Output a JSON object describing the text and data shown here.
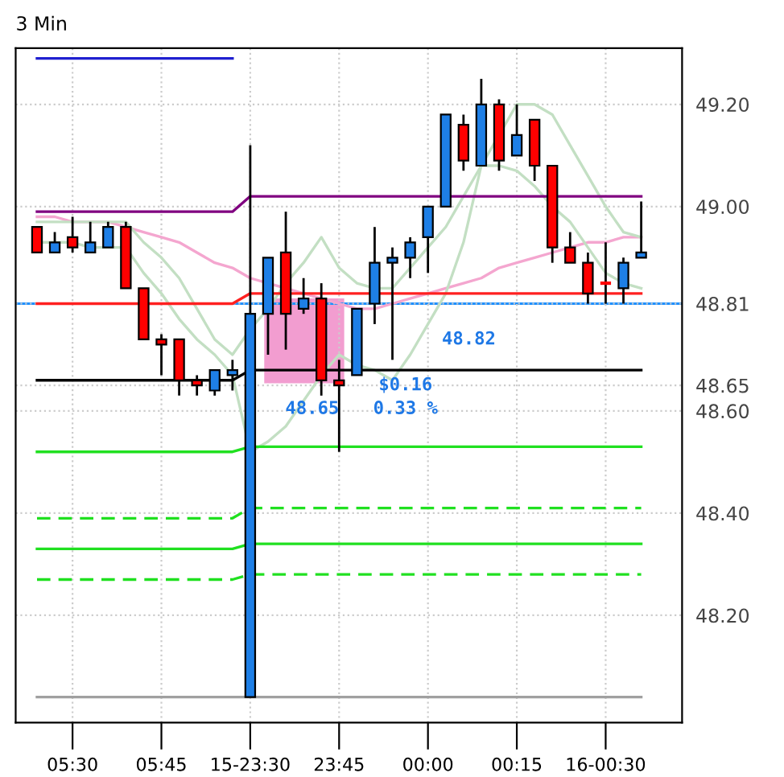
{
  "chart_data": {
    "type": "candlestick",
    "title": "3 Min",
    "categories": [
      null,
      null,
      "05:30",
      null,
      null,
      null,
      null,
      "05:45",
      null,
      null,
      null,
      null,
      "15-23:30",
      null,
      null,
      null,
      null,
      "23:45",
      null,
      null,
      null,
      null,
      "00:00",
      null,
      null,
      null,
      null,
      "00:15",
      null,
      null,
      null,
      null,
      "16-00:30",
      null,
      null
    ],
    "ohlc": [
      [
        48.96,
        48.96,
        48.91,
        48.91
      ],
      [
        48.91,
        48.95,
        48.91,
        48.93
      ],
      [
        48.94,
        48.98,
        48.91,
        48.92
      ],
      [
        48.91,
        48.97,
        48.91,
        48.93
      ],
      [
        48.92,
        48.97,
        48.92,
        48.96
      ],
      [
        48.96,
        48.97,
        48.84,
        48.84
      ],
      [
        48.84,
        48.84,
        48.74,
        48.74
      ],
      [
        48.74,
        48.75,
        48.67,
        48.73
      ],
      [
        48.74,
        48.74,
        48.63,
        48.66
      ],
      [
        48.66,
        48.67,
        48.63,
        48.65
      ],
      [
        48.64,
        48.68,
        48.63,
        48.68
      ],
      [
        48.67,
        48.7,
        48.64,
        48.68
      ],
      [
        48.04,
        49.12,
        48.04,
        48.79
      ],
      [
        48.79,
        48.9,
        48.71,
        48.9
      ],
      [
        48.91,
        48.99,
        48.72,
        48.79
      ],
      [
        48.8,
        48.86,
        48.79,
        48.82
      ],
      [
        48.82,
        48.85,
        48.63,
        48.66
      ],
      [
        48.66,
        48.7,
        48.52,
        48.65
      ],
      [
        48.67,
        48.8,
        48.67,
        48.8
      ],
      [
        48.81,
        48.96,
        48.77,
        48.89
      ],
      [
        48.89,
        48.92,
        48.7,
        48.9
      ],
      [
        48.9,
        48.94,
        48.86,
        48.93
      ],
      [
        48.94,
        49.0,
        48.87,
        49.0
      ],
      [
        49.0,
        49.18,
        49.0,
        49.18
      ],
      [
        49.16,
        49.18,
        49.07,
        49.09
      ],
      [
        49.08,
        49.25,
        49.08,
        49.2
      ],
      [
        49.2,
        49.21,
        49.07,
        49.09
      ],
      [
        49.1,
        49.2,
        49.1,
        49.14
      ],
      [
        49.17,
        49.17,
        49.05,
        49.08
      ],
      [
        49.08,
        49.08,
        48.89,
        48.92
      ],
      [
        48.92,
        48.95,
        48.89,
        48.89
      ],
      [
        48.89,
        48.91,
        48.81,
        48.83
      ],
      [
        48.85,
        48.93,
        48.81,
        48.85
      ],
      [
        48.84,
        48.9,
        48.81,
        48.89
      ],
      [
        48.9,
        49.01,
        48.9,
        48.91
      ]
    ],
    "colors": [
      "#ff0000",
      "#1e7fe6",
      "#ff0000",
      "#1e7fe6",
      "#1e7fe6",
      "#ff0000",
      "#ff0000",
      "#ff0000",
      "#ff0000",
      "#ff0000",
      "#1e7fe6",
      "#1e7fe6",
      "#1e7fe6",
      "#1e7fe6",
      "#ff0000",
      "#1e7fe6",
      "#ff0000",
      "#ff0000",
      "#1e7fe6",
      "#1e7fe6",
      "#1e7fe6",
      "#1e7fe6",
      "#1e7fe6",
      "#1e7fe6",
      "#ff0000",
      "#1e7fe6",
      "#ff0000",
      "#1e7fe6",
      "#ff0000",
      "#ff0000",
      "#ff0000",
      "#ff0000",
      "#ff0000",
      "#1e7fe6",
      "#1e7fe6"
    ],
    "series": [
      {
        "type": "line",
        "color": "#f4a6cf",
        "values": [
          48.98,
          48.98,
          48.97,
          48.97,
          48.97,
          48.96,
          48.95,
          48.94,
          48.93,
          48.91,
          48.89,
          48.88,
          48.86,
          48.85,
          48.84,
          48.83,
          48.82,
          48.81,
          48.8,
          48.8,
          48.81,
          48.82,
          48.83,
          48.84,
          48.85,
          48.86,
          48.88,
          48.89,
          48.9,
          48.91,
          48.92,
          48.93,
          48.93,
          48.94,
          48.94
        ]
      },
      {
        "type": "line",
        "color": "#c3dfc3",
        "values": [
          48.97,
          48.97,
          48.97,
          48.97,
          48.97,
          48.97,
          48.93,
          48.9,
          48.86,
          48.8,
          48.74,
          48.71,
          48.76,
          48.8,
          48.85,
          48.89,
          48.94,
          48.88,
          48.85,
          48.84,
          48.84,
          48.88,
          48.92,
          48.96,
          49.02,
          49.08,
          49.14,
          49.2,
          49.2,
          49.18,
          49.12,
          49.06,
          49.0,
          48.95,
          48.94
        ]
      },
      {
        "type": "line",
        "color": "#c3dfc3",
        "values": [
          48.93,
          48.93,
          48.93,
          48.92,
          48.92,
          48.92,
          48.87,
          48.83,
          48.78,
          48.74,
          48.71,
          48.67,
          48.52,
          48.54,
          48.57,
          48.62,
          48.67,
          48.71,
          48.69,
          48.68,
          48.66,
          48.71,
          48.77,
          48.83,
          48.93,
          49.08,
          49.08,
          49.07,
          49.04,
          49.0,
          48.97,
          48.92,
          48.87,
          48.85,
          48.84
        ]
      },
      {
        "type": "line",
        "color": "#2020d0",
        "values": [
          49.29,
          49.29,
          49.29,
          49.29,
          49.29,
          49.29,
          49.29,
          49.29,
          49.29,
          49.29,
          49.29,
          49.29,
          null,
          null,
          null,
          null,
          null,
          null,
          null,
          null,
          null,
          null,
          null,
          null,
          null,
          null,
          null,
          null,
          null,
          null,
          null,
          null,
          null,
          null,
          null
        ]
      },
      {
        "type": "line",
        "color": "#800080",
        "values": [
          48.99,
          48.99,
          48.99,
          48.99,
          48.99,
          48.99,
          48.99,
          48.99,
          48.99,
          48.99,
          48.99,
          48.99,
          49.02,
          49.02,
          49.02,
          49.02,
          49.02,
          49.02,
          49.02,
          49.02,
          49.02,
          49.02,
          49.02,
          49.02,
          49.02,
          49.02,
          49.02,
          49.02,
          49.02,
          49.02,
          49.02,
          49.02,
          49.02,
          49.02,
          49.02
        ]
      },
      {
        "type": "line",
        "color": "#ff2020",
        "values": [
          48.81,
          48.81,
          48.81,
          48.81,
          48.81,
          48.81,
          48.81,
          48.81,
          48.81,
          48.81,
          48.81,
          48.81,
          48.83,
          48.83,
          48.83,
          48.83,
          48.83,
          48.83,
          48.83,
          48.83,
          48.83,
          48.83,
          48.83,
          48.83,
          48.83,
          48.83,
          48.83,
          48.83,
          48.83,
          48.83,
          48.83,
          48.83,
          48.83,
          48.83,
          48.83
        ]
      },
      {
        "type": "line",
        "color": "#000000",
        "values": [
          48.66,
          48.66,
          48.66,
          48.66,
          48.66,
          48.66,
          48.66,
          48.66,
          48.66,
          48.66,
          48.66,
          48.66,
          48.68,
          48.68,
          48.68,
          48.68,
          48.68,
          48.68,
          48.68,
          48.68,
          48.68,
          48.68,
          48.68,
          48.68,
          48.68,
          48.68,
          48.68,
          48.68,
          48.68,
          48.68,
          48.68,
          48.68,
          48.68,
          48.68,
          48.68
        ]
      },
      {
        "type": "line",
        "color": "#20e020",
        "values": [
          48.52,
          48.52,
          48.52,
          48.52,
          48.52,
          48.52,
          48.52,
          48.52,
          48.52,
          48.52,
          48.52,
          48.52,
          48.53,
          48.53,
          48.53,
          48.53,
          48.53,
          48.53,
          48.53,
          48.53,
          48.53,
          48.53,
          48.53,
          48.53,
          48.53,
          48.53,
          48.53,
          48.53,
          48.53,
          48.53,
          48.53,
          48.53,
          48.53,
          48.53,
          48.53
        ]
      },
      {
        "type": "line",
        "color": "#20e020",
        "values": [
          48.33,
          48.33,
          48.33,
          48.33,
          48.33,
          48.33,
          48.33,
          48.33,
          48.33,
          48.33,
          48.33,
          48.33,
          48.34,
          48.34,
          48.34,
          48.34,
          48.34,
          48.34,
          48.34,
          48.34,
          48.34,
          48.34,
          48.34,
          48.34,
          48.34,
          48.34,
          48.34,
          48.34,
          48.34,
          48.34,
          48.34,
          48.34,
          48.34,
          48.34,
          48.34
        ]
      },
      {
        "type": "line",
        "color": "#20e020",
        "line_style": "dashed",
        "values": [
          48.39,
          48.39,
          48.39,
          48.39,
          48.39,
          48.39,
          48.39,
          48.39,
          48.39,
          48.39,
          48.39,
          48.39,
          48.41,
          48.41,
          48.41,
          48.41,
          48.41,
          48.41,
          48.41,
          48.41,
          48.41,
          48.41,
          48.41,
          48.41,
          48.41,
          48.41,
          48.41,
          48.41,
          48.41,
          48.41,
          48.41,
          48.41,
          48.41,
          48.41,
          48.41
        ]
      },
      {
        "type": "line",
        "color": "#20e020",
        "line_style": "dashed",
        "values": [
          48.27,
          48.27,
          48.27,
          48.27,
          48.27,
          48.27,
          48.27,
          48.27,
          48.27,
          48.27,
          48.27,
          48.27,
          48.28,
          48.28,
          48.28,
          48.28,
          48.28,
          48.28,
          48.28,
          48.28,
          48.28,
          48.28,
          48.28,
          48.28,
          48.28,
          48.28,
          48.28,
          48.28,
          48.28,
          48.28,
          48.28,
          48.28,
          48.28,
          48.28,
          48.28
        ]
      },
      {
        "type": "line",
        "color": "#a0a0a0",
        "values": [
          48.04,
          48.04,
          48.04,
          48.04,
          48.04,
          48.04,
          48.04,
          48.04,
          48.04,
          48.04,
          48.04,
          48.04,
          48.04,
          48.04,
          48.04,
          48.04,
          48.04,
          48.04,
          48.04,
          48.04,
          48.04,
          48.04,
          48.04,
          48.04,
          48.04,
          48.04,
          48.04,
          48.04,
          48.04,
          48.04,
          48.04,
          48.04,
          48.04,
          48.04,
          48.04
        ]
      }
    ],
    "ref_lines": [
      {
        "axis": "y",
        "value": 48.81,
        "color": "#1e90ff"
      }
    ],
    "annotations": [
      "48.82",
      "48.65",
      "$0.16",
      "0.33 %"
    ],
    "ylim": [
      47.99,
      49.31
    ],
    "yticks": [
      {
        "value": 48.2,
        "label": "48.20"
      },
      {
        "value": 48.4,
        "label": "48.40"
      },
      {
        "value": 48.6,
        "label": "48.60"
      },
      {
        "value": 48.65,
        "label": "48.65"
      },
      {
        "value": 48.81,
        "label": "48.81"
      },
      {
        "value": 49.0,
        "label": "49.00"
      },
      {
        "value": 49.2,
        "label": "49.20"
      }
    ],
    "grid": true
  }
}
